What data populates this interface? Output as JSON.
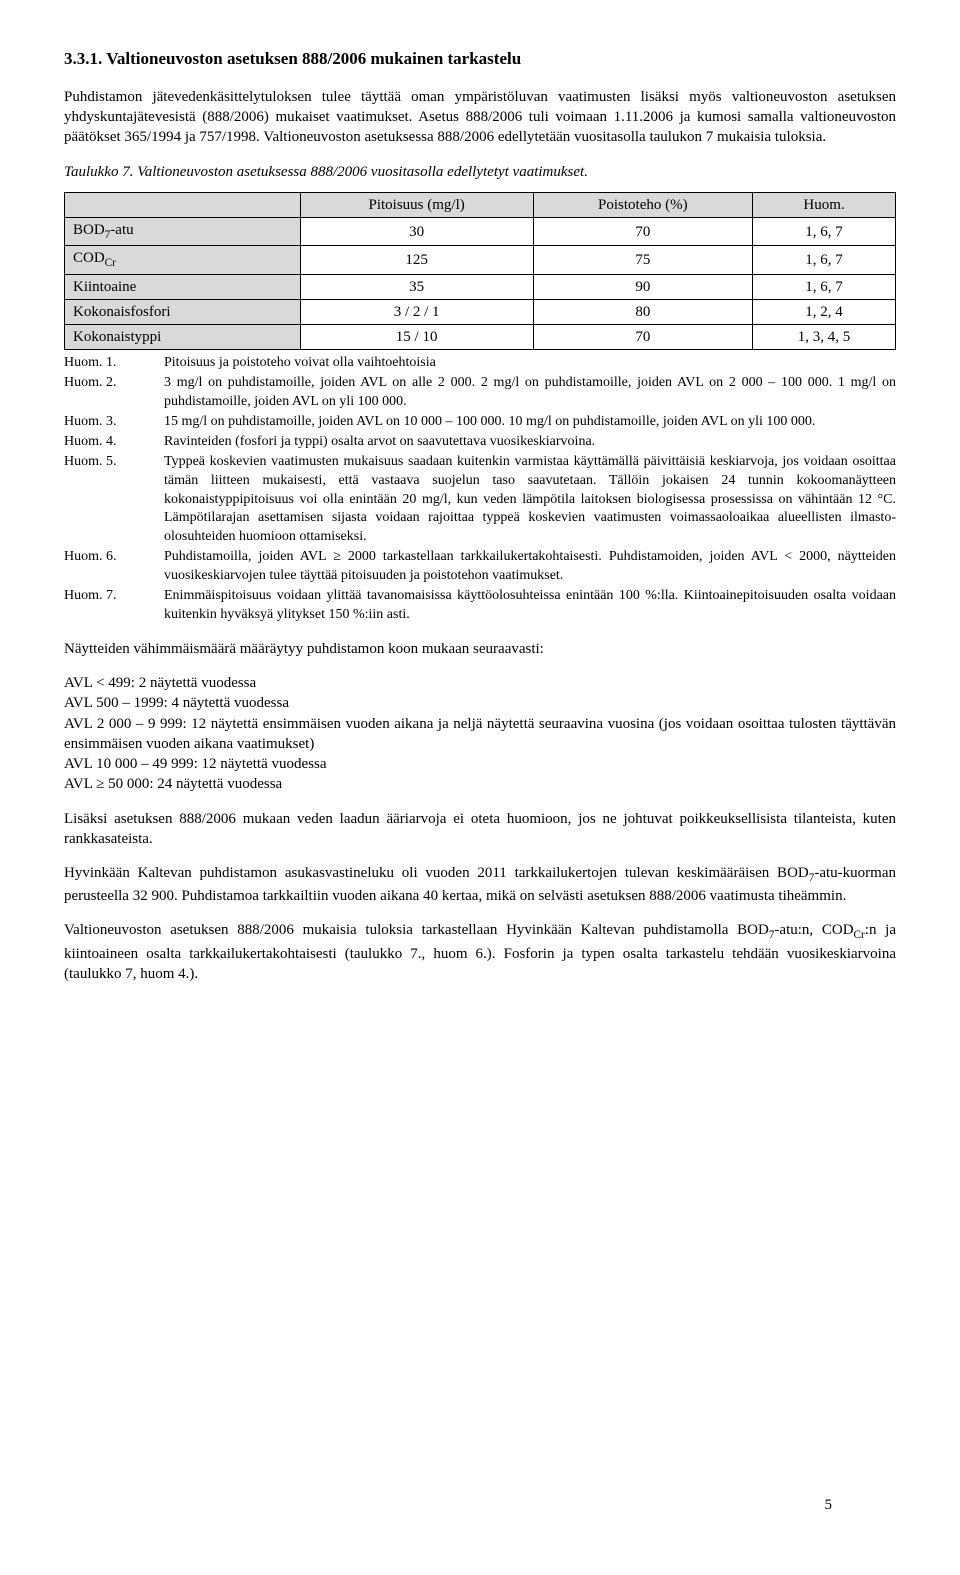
{
  "heading": "3.3.1. Valtioneuvoston asetuksen 888/2006 mukainen tarkastelu",
  "intro": {
    "p1": "Puhdistamon jätevedenkäsittelytuloksen tulee täyttää oman ympäristöluvan vaatimusten lisäksi myös valtioneuvoston asetuksen yhdyskuntajätevesistä (888/2006) mukaiset vaatimukset. Asetus 888/2006 tuli voimaan 1.11.2006 ja kumosi samalla valtioneuvoston päätökset 365/1994 ja 757/1998. Valtioneuvoston asetuksessa 888/2006 edellytetään vuositasolla taulukon 7 mukaisia tuloksia."
  },
  "table_caption": "Taulukko 7. Valtioneuvoston asetuksessa 888/2006 vuositasolla edellytetyt vaatimukset.",
  "table": {
    "columns": [
      "",
      "Pitoisuus (mg/l)",
      "Poistoteho (%)",
      "Huom."
    ],
    "rows": [
      {
        "label_html": "BOD<span class=\"sub\">7</span>-atu",
        "pitoisuus": "30",
        "poisto": "70",
        "huom": "1, 6, 7"
      },
      {
        "label_html": "COD<span class=\"sub\">Cr</span>",
        "pitoisuus": "125",
        "poisto": "75",
        "huom": "1, 6, 7"
      },
      {
        "label_html": "Kiintoaine",
        "pitoisuus": "35",
        "poisto": "90",
        "huom": "1, 6, 7"
      },
      {
        "label_html": "Kokonaisfosfori",
        "pitoisuus": "3 / 2 / 1",
        "poisto": "80",
        "huom": "1, 2, 4"
      },
      {
        "label_html": "Kokonaistyppi",
        "pitoisuus": "15 / 10",
        "poisto": "70",
        "huom": "1, 3, 4, 5"
      }
    ],
    "header_bg": "#d9d9d9",
    "border_color": "#000000"
  },
  "notes": [
    {
      "label": "Huom. 1.",
      "text": "Pitoisuus ja poistoteho voivat olla vaihtoehtoisia"
    },
    {
      "label": "Huom. 2.",
      "text": "3 mg/l on puhdistamoille, joiden AVL on alle 2 000. 2 mg/l on puhdistamoille, joiden AVL on 2 000 – 100 000. 1 mg/l on puhdistamoille, joiden AVL on yli 100 000."
    },
    {
      "label": "Huom. 3.",
      "text": "15 mg/l on puhdistamoille, joiden AVL on 10 000 – 100 000. 10 mg/l on puhdistamoille, joiden AVL on yli 100 000."
    },
    {
      "label": "Huom. 4.",
      "text": "Ravinteiden (fosfori ja typpi) osalta arvot on saavutettava vuosikeskiarvoina."
    },
    {
      "label": "Huom. 5.",
      "text": "Typpeä koskevien vaatimusten mukaisuus saadaan kuitenkin varmistaa käyttämällä päivittäisiä keskiarvoja, jos voidaan osoittaa tämän liitteen mukaisesti, että vastaava suojelun taso saavutetaan. Tällöin jokaisen 24 tunnin kokoomanäytteen kokonaistyppipitoisuus voi olla enintään 20 mg/l, kun veden lämpötila laitoksen biologisessa prosessissa on vähintään 12 °C. Lämpötilarajan asettamisen sijasta voidaan rajoittaa typpeä koskevien vaatimusten voimassaoloaikaa alueellisten ilmasto-olosuhteiden huomioon ottamiseksi."
    },
    {
      "label": "Huom. 6.",
      "text": "Puhdistamoilla, joiden AVL ≥ 2000 tarkastellaan tarkkailukertakohtaisesti. Puhdistamoiden, joiden AVL < 2000, näytteiden vuosikeskiarvojen tulee täyttää pitoisuuden ja poistotehon vaatimukset."
    },
    {
      "label": "Huom. 7.",
      "text": "Enimmäispitoisuus voidaan ylittää tavanomaisissa käyttöolosuhteissa enintään 100 %:lla. Kiintoainepitoisuuden osalta voidaan kuitenkin hyväksyä ylitykset 150 %:iin asti."
    }
  ],
  "body": {
    "p2": "Näytteiden vähimmäismäärä määräytyy puhdistamon koon mukaan seuraavasti:",
    "list": [
      "AVL < 499: 2 näytettä vuodessa",
      "AVL 500 – 1999: 4 näytettä vuodessa",
      "AVL 2 000 – 9 999: 12 näytettä ensimmäisen vuoden aikana ja neljä näytettä seuraavina vuosina (jos voidaan osoittaa tulosten täyttävän ensimmäisen vuoden aikana vaatimukset)",
      "AVL 10 000 – 49 999: 12 näytettä vuodessa",
      "AVL ≥ 50 000: 24 näytettä vuodessa"
    ],
    "p3": "Lisäksi asetuksen 888/2006 mukaan veden laadun ääriarvoja ei oteta huomioon, jos ne johtuvat poikkeuksellisista tilanteista, kuten rankkasateista.",
    "p4": "Hyvinkään Kaltevan puhdistamon asukasvastineluku oli vuoden 2011 tarkkailukertojen tulevan keskimääräisen BOD7-atu-kuorman perusteella 32 900. Puhdistamoa tarkkailtiin vuoden aikana 40 kertaa, mikä on selvästi asetuksen 888/2006 vaatimusta tiheämmin.",
    "p5": "Valtioneuvoston asetuksen 888/2006 mukaisia tuloksia tarkastellaan Hyvinkään Kaltevan puhdistamolla BOD7-atu:n, CODCr:n ja kiintoaineen osalta tarkkailukertakohtaisesti (taulukko 7., huom 6.). Fosforin ja typen osalta tarkastelu tehdään vuosikeskiarvoina (taulukko 7, huom 4.)."
  },
  "page_number": "5"
}
